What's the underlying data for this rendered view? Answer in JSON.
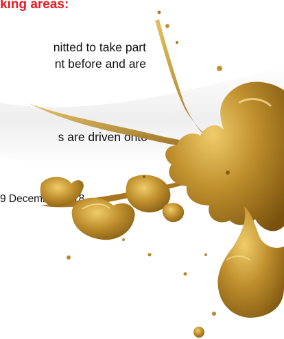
{
  "heading": "king areas:",
  "paragraph_1": [
    "nitted to take part",
    "nt before and are"
  ],
  "paragraph_2": "s are driven onto",
  "date": "9 December 2018",
  "colors": {
    "heading": "#e31b23",
    "text": "#111111",
    "paint": "#b8862a",
    "paint_dark": "#8a5e12",
    "paint_light": "#e6c060",
    "band": "#d6d6d6"
  }
}
